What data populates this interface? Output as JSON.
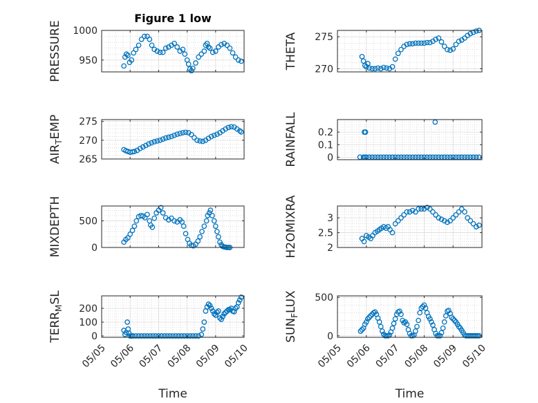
{
  "figure": {
    "title": "Figure 1 low",
    "marker_color": "#0072bd"
  },
  "chart_data": [
    {
      "type": "scatter",
      "ylabel": "PRESSURE",
      "title": "Figure 1 low",
      "xlim": [
        0,
        5
      ],
      "ylim": [
        930,
        1000
      ],
      "yticks": [
        950,
        1000
      ],
      "ytick_labels": [
        "950",
        "1000"
      ],
      "xticks": [
        0,
        1,
        2,
        3,
        4,
        5
      ],
      "xtick_labels": [],
      "grid": true,
      "minor_grid": true,
      "x": [
        0.78,
        0.82,
        0.87,
        0.92,
        0.98,
        1.05,
        1.12,
        1.2,
        1.3,
        1.4,
        1.5,
        1.6,
        1.68,
        1.76,
        1.85,
        1.95,
        2.05,
        2.15,
        2.25,
        2.35,
        2.45,
        2.55,
        2.65,
        2.75,
        2.85,
        2.92,
        3.0,
        3.05,
        3.1,
        3.15,
        3.2,
        3.3,
        3.4,
        3.5,
        3.6,
        3.65,
        3.7,
        3.75,
        3.8,
        3.9,
        4.0,
        4.1,
        4.2,
        4.3,
        4.4,
        4.5,
        4.6,
        4.7,
        4.8,
        4.9
      ],
      "y": [
        940,
        955,
        960,
        958,
        946,
        950,
        962,
        968,
        975,
        985,
        990,
        990,
        985,
        975,
        968,
        965,
        963,
        963,
        970,
        972,
        975,
        978,
        972,
        965,
        968,
        960,
        950,
        943,
        935,
        932,
        936,
        945,
        955,
        960,
        965,
        975,
        978,
        972,
        970,
        963,
        965,
        972,
        976,
        978,
        975,
        970,
        962,
        955,
        950,
        948
      ]
    },
    {
      "type": "scatter",
      "ylabel": "THETA",
      "xlim": [
        0,
        5
      ],
      "ylim": [
        269.5,
        276
      ],
      "yticks": [
        270,
        275
      ],
      "ytick_labels": [
        "270",
        "275"
      ],
      "xticks": [
        0,
        1,
        2,
        3,
        4,
        5
      ],
      "xtick_labels": [],
      "grid": true,
      "minor_grid": true,
      "x": [
        0.85,
        0.9,
        0.95,
        1.0,
        1.05,
        1.1,
        1.2,
        1.3,
        1.4,
        1.5,
        1.6,
        1.7,
        1.8,
        1.9,
        2.0,
        2.1,
        2.2,
        2.3,
        2.4,
        2.5,
        2.6,
        2.7,
        2.8,
        2.9,
        3.0,
        3.1,
        3.2,
        3.3,
        3.4,
        3.5,
        3.6,
        3.7,
        3.8,
        3.9,
        4.0,
        4.1,
        4.2,
        4.3,
        4.4,
        4.5,
        4.6,
        4.7,
        4.8,
        4.9
      ],
      "y": [
        271.9,
        271.2,
        270.5,
        270.3,
        270.8,
        270.1,
        270.0,
        270.0,
        270.1,
        270.0,
        270.2,
        270.1,
        270.0,
        270.3,
        271.5,
        272.4,
        273.0,
        273.5,
        273.8,
        273.9,
        273.9,
        274.0,
        274.0,
        274.0,
        274.0,
        274.1,
        274.1,
        274.3,
        274.6,
        274.8,
        274.2,
        273.5,
        273.0,
        272.9,
        273.1,
        273.8,
        274.3,
        274.5,
        274.8,
        275.2,
        275.5,
        275.7,
        275.9,
        276.0
      ]
    },
    {
      "type": "scatter",
      "ylabel": "AIR_TEMP",
      "xlim": [
        0,
        5
      ],
      "ylim": [
        265,
        275.5
      ],
      "yticks": [
        265,
        270,
        275
      ],
      "ytick_labels": [
        "265",
        "270",
        "275"
      ],
      "xticks": [
        0,
        1,
        2,
        3,
        4,
        5
      ],
      "xtick_labels": [],
      "grid": true,
      "minor_grid": true,
      "x": [
        0.78,
        0.85,
        0.92,
        1.0,
        1.08,
        1.15,
        1.25,
        1.35,
        1.45,
        1.55,
        1.65,
        1.75,
        1.85,
        1.95,
        2.05,
        2.15,
        2.25,
        2.35,
        2.45,
        2.55,
        2.65,
        2.75,
        2.85,
        2.95,
        3.05,
        3.15,
        3.25,
        3.35,
        3.45,
        3.55,
        3.65,
        3.75,
        3.85,
        3.95,
        4.05,
        4.15,
        4.25,
        4.35,
        4.45,
        4.55,
        4.65,
        4.75,
        4.85,
        4.9
      ],
      "y": [
        267.5,
        267.2,
        267.0,
        266.8,
        266.9,
        267.0,
        267.3,
        267.8,
        268.2,
        268.6,
        269.0,
        269.3,
        269.6,
        269.8,
        270.0,
        270.3,
        270.6,
        270.8,
        271.0,
        271.3,
        271.6,
        271.8,
        272.0,
        272.1,
        272.0,
        271.5,
        270.7,
        270.0,
        269.8,
        269.7,
        270.0,
        270.5,
        271.0,
        271.3,
        271.6,
        272.0,
        272.5,
        273.0,
        273.4,
        273.6,
        273.5,
        273.0,
        272.5,
        272.2
      ]
    },
    {
      "type": "scatter",
      "ylabel": "RAINFALL",
      "xlim": [
        0,
        5
      ],
      "ylim": [
        -0.02,
        0.3
      ],
      "yticks": [
        0,
        0.1,
        0.2
      ],
      "ytick_labels": [
        "0",
        "0.1",
        "0.2"
      ],
      "xticks": [
        0,
        1,
        2,
        3,
        4,
        5
      ],
      "xtick_labels": [],
      "grid": true,
      "minor_grid": true,
      "x": [
        0.78,
        0.9,
        0.95,
        1.0,
        1.1,
        1.2,
        1.3,
        1.4,
        1.5,
        1.6,
        1.7,
        1.8,
        1.9,
        2.0,
        2.1,
        2.2,
        2.3,
        2.4,
        2.5,
        2.6,
        2.7,
        2.8,
        2.9,
        3.0,
        3.1,
        3.2,
        3.3,
        3.4,
        3.5,
        3.6,
        3.7,
        3.8,
        3.9,
        4.0,
        4.1,
        4.2,
        4.3,
        4.4,
        4.5,
        4.6,
        4.7,
        4.8,
        4.9,
        0.93,
        0.97,
        3.38
      ],
      "y": [
        0,
        0,
        0,
        0,
        0,
        0,
        0,
        0,
        0,
        0,
        0,
        0,
        0,
        0,
        0,
        0,
        0,
        0,
        0,
        0,
        0,
        0,
        0,
        0,
        0,
        0,
        0,
        0,
        0,
        0,
        0,
        0,
        0,
        0,
        0,
        0,
        0,
        0,
        0,
        0,
        0,
        0,
        0,
        0.2,
        0.2,
        0.28
      ]
    },
    {
      "type": "scatter",
      "ylabel": "MIXDEPTH",
      "xlim": [
        0,
        5
      ],
      "ylim": [
        0,
        780
      ],
      "yticks": [
        0,
        500
      ],
      "ytick_labels": [
        "0",
        "500"
      ],
      "xticks": [
        0,
        1,
        2,
        3,
        4,
        5
      ],
      "xtick_labels": [],
      "grid": true,
      "minor_grid": true,
      "x": [
        0.78,
        0.85,
        0.92,
        1.0,
        1.08,
        1.15,
        1.22,
        1.3,
        1.38,
        1.45,
        1.52,
        1.6,
        1.68,
        1.72,
        1.78,
        1.85,
        1.92,
        2.0,
        2.08,
        2.15,
        2.25,
        2.35,
        2.45,
        2.55,
        2.65,
        2.75,
        2.82,
        2.88,
        2.95,
        3.02,
        3.08,
        3.15,
        3.22,
        3.3,
        3.38,
        3.45,
        3.52,
        3.6,
        3.68,
        3.72,
        3.78,
        3.82,
        3.88,
        3.95,
        4.0,
        4.05,
        4.1,
        4.15,
        4.2,
        4.25,
        4.3,
        4.35,
        4.4,
        4.45,
        4.5
      ],
      "y": [
        100,
        150,
        180,
        250,
        320,
        400,
        500,
        580,
        600,
        590,
        560,
        620,
        500,
        420,
        380,
        550,
        650,
        700,
        750,
        650,
        560,
        520,
        550,
        500,
        480,
        520,
        480,
        400,
        260,
        150,
        80,
        40,
        30,
        60,
        120,
        200,
        300,
        400,
        500,
        600,
        650,
        700,
        600,
        500,
        400,
        300,
        200,
        100,
        50,
        20,
        10,
        5,
        0,
        0,
        0
      ]
    },
    {
      "type": "scatter",
      "ylabel": "H2OMIXRA",
      "xlim": [
        0,
        5
      ],
      "ylim": [
        2,
        3.4
      ],
      "yticks": [
        2,
        2.5,
        3
      ],
      "ytick_labels": [
        "2",
        "2.5",
        "3"
      ],
      "xticks": [
        0,
        1,
        2,
        3,
        4,
        5
      ],
      "xtick_labels": [],
      "grid": true,
      "minor_grid": true,
      "x": [
        0.85,
        0.92,
        1.0,
        1.08,
        1.15,
        1.22,
        1.3,
        1.38,
        1.45,
        1.52,
        1.6,
        1.68,
        1.75,
        1.82,
        1.9,
        2.0,
        2.1,
        2.2,
        2.3,
        2.4,
        2.5,
        2.6,
        2.7,
        2.8,
        2.9,
        3.0,
        3.1,
        3.2,
        3.3,
        3.4,
        3.5,
        3.6,
        3.7,
        3.8,
        3.9,
        4.0,
        4.1,
        4.2,
        4.3,
        4.4,
        4.5,
        4.6,
        4.7,
        4.8,
        4.9
      ],
      "y": [
        2.3,
        2.2,
        2.4,
        2.35,
        2.3,
        2.4,
        2.5,
        2.55,
        2.6,
        2.65,
        2.7,
        2.65,
        2.7,
        2.6,
        2.5,
        2.8,
        2.9,
        3.0,
        3.1,
        3.2,
        3.2,
        3.25,
        3.2,
        3.3,
        3.3,
        3.3,
        3.35,
        3.3,
        3.2,
        3.1,
        3.0,
        2.95,
        2.9,
        2.85,
        2.9,
        3.0,
        3.1,
        3.2,
        3.3,
        3.2,
        3.0,
        2.9,
        2.8,
        2.7,
        2.75
      ]
    },
    {
      "type": "scatter",
      "ylabel": "TERR_MSL",
      "xlim": [
        0,
        5
      ],
      "ylim": [
        -10,
        290
      ],
      "yticks": [
        0,
        100,
        200
      ],
      "ytick_labels": [
        "0",
        "100",
        "200"
      ],
      "xticks": [
        0,
        1,
        2,
        3,
        4,
        5
      ],
      "xtick_labels": [
        "05/05",
        "05/06",
        "05/07",
        "05/08",
        "05/09",
        "05/10"
      ],
      "xlabel": "Time",
      "grid": true,
      "minor_grid": true,
      "x": [
        0.78,
        0.82,
        0.86,
        0.9,
        0.93,
        0.96,
        1.0,
        1.05,
        1.1,
        1.2,
        1.3,
        1.4,
        1.5,
        1.6,
        1.7,
        1.8,
        1.9,
        2.0,
        2.1,
        2.2,
        2.3,
        2.4,
        2.5,
        2.6,
        2.7,
        2.8,
        2.9,
        3.0,
        3.1,
        3.2,
        3.3,
        3.4,
        3.5,
        3.55,
        3.6,
        3.65,
        3.7,
        3.75,
        3.8,
        3.85,
        3.9,
        3.95,
        4.0,
        4.05,
        4.1,
        4.15,
        4.2,
        4.25,
        4.3,
        4.35,
        4.4,
        4.45,
        4.5,
        4.55,
        4.6,
        4.65,
        4.7,
        4.75,
        4.8,
        4.85,
        4.9
      ],
      "y": [
        40,
        10,
        25,
        100,
        50,
        20,
        0,
        0,
        0,
        0,
        0,
        0,
        0,
        0,
        0,
        0,
        0,
        0,
        0,
        0,
        0,
        0,
        0,
        0,
        0,
        0,
        0,
        0,
        0,
        0,
        0,
        0,
        10,
        50,
        100,
        180,
        210,
        230,
        220,
        200,
        180,
        160,
        150,
        170,
        180,
        130,
        120,
        140,
        160,
        170,
        180,
        190,
        190,
        200,
        180,
        175,
        200,
        210,
        240,
        260,
        280
      ]
    },
    {
      "type": "scatter",
      "ylabel": "SUN_FLUX",
      "xlim": [
        0,
        5
      ],
      "ylim": [
        -20,
        520
      ],
      "yticks": [
        0,
        500
      ],
      "ytick_labels": [
        "0",
        "500"
      ],
      "xticks": [
        0,
        1,
        2,
        3,
        4,
        5
      ],
      "xtick_labels": [
        "05/05",
        "05/06",
        "05/07",
        "05/08",
        "05/09",
        "05/10"
      ],
      "xlabel": "Time",
      "grid": true,
      "minor_grid": true,
      "x": [
        0.8,
        0.85,
        0.9,
        0.95,
        1.0,
        1.05,
        1.1,
        1.15,
        1.2,
        1.25,
        1.3,
        1.35,
        1.4,
        1.45,
        1.5,
        1.55,
        1.6,
        1.65,
        1.7,
        1.75,
        1.8,
        1.85,
        1.9,
        1.95,
        2.0,
        2.05,
        2.1,
        2.15,
        2.2,
        2.25,
        2.3,
        2.35,
        2.4,
        2.45,
        2.5,
        2.55,
        2.6,
        2.65,
        2.7,
        2.75,
        2.8,
        2.85,
        2.9,
        2.95,
        3.0,
        3.05,
        3.1,
        3.15,
        3.2,
        3.25,
        3.3,
        3.35,
        3.4,
        3.45,
        3.5,
        3.55,
        3.6,
        3.65,
        3.7,
        3.75,
        3.8,
        3.85,
        3.9,
        3.95,
        4.0,
        4.05,
        4.1,
        4.15,
        4.2,
        4.25,
        4.3,
        4.35,
        4.4,
        4.45,
        4.5,
        4.55,
        4.6,
        4.65,
        4.7,
        4.75,
        4.8,
        4.85,
        4.9
      ],
      "y": [
        60,
        80,
        100,
        150,
        180,
        220,
        240,
        260,
        280,
        300,
        310,
        280,
        230,
        180,
        120,
        60,
        20,
        0,
        0,
        0,
        10,
        50,
        100,
        160,
        220,
        280,
        310,
        320,
        280,
        200,
        170,
        180,
        150,
        80,
        30,
        0,
        0,
        10,
        60,
        120,
        200,
        300,
        360,
        380,
        400,
        360,
        300,
        250,
        220,
        180,
        140,
        80,
        30,
        0,
        0,
        0,
        40,
        100,
        180,
        260,
        320,
        330,
        290,
        240,
        220,
        200,
        180,
        150,
        120,
        100,
        70,
        40,
        10,
        0,
        0,
        0,
        0,
        0,
        0,
        0,
        0,
        0,
        0
      ]
    }
  ]
}
